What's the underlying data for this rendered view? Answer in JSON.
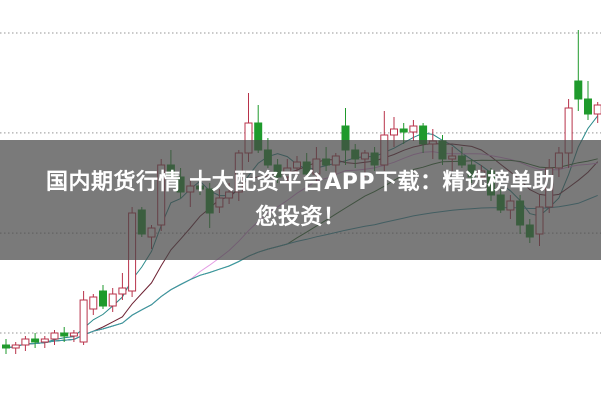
{
  "title": {
    "line1": "国内期货行情 十大配资平台APP下载：精选榜单助",
    "line2": "您投资！"
  },
  "chart_data": {
    "type": "candlestick",
    "grid": "dotted-horizontal",
    "ylim": [
      -12,
      112
    ],
    "gridlines": [
      0,
      33.3,
      66.7,
      100
    ],
    "colors": {
      "up": "#b8324a",
      "down": "#1f9a2c"
    },
    "moving_averages": [
      {
        "period": 5,
        "color": "#2a8a8a"
      },
      {
        "period": 10,
        "color": "#6e2233"
      },
      {
        "period": 20,
        "color": "#e39be3"
      },
      {
        "period": 30,
        "color": "#2f6e2f"
      },
      {
        "period": 60,
        "color": "#3a9aa8"
      }
    ],
    "ohlc": [
      [
        -4,
        -2,
        -7,
        -5
      ],
      [
        -5,
        -3,
        -7,
        -4
      ],
      [
        -4,
        -1,
        -6,
        -2
      ],
      [
        -2,
        0,
        -5,
        -3
      ],
      [
        -3,
        -1,
        -5,
        -2
      ],
      [
        -2,
        1,
        -4,
        0
      ],
      [
        0,
        2,
        -3,
        -1
      ],
      [
        -1,
        1,
        -3,
        0
      ],
      [
        -3,
        14,
        -4,
        11
      ],
      [
        8,
        13,
        6,
        12
      ],
      [
        14,
        16,
        8,
        9
      ],
      [
        9,
        15,
        7,
        13
      ],
      [
        13,
        20,
        11,
        15
      ],
      [
        14,
        42,
        12,
        40
      ],
      [
        41,
        42,
        32,
        33
      ],
      [
        32,
        36,
        28,
        35
      ],
      [
        36,
        58,
        34,
        56
      ],
      [
        56,
        61,
        52,
        53
      ],
      [
        52,
        55,
        45,
        47
      ],
      [
        47,
        51,
        42,
        49
      ],
      [
        49,
        53,
        46,
        48
      ],
      [
        48,
        50,
        35,
        40
      ],
      [
        42,
        48,
        40,
        45
      ],
      [
        45,
        50,
        43,
        47
      ],
      [
        47,
        61,
        44,
        60
      ],
      [
        60,
        80,
        57,
        70
      ],
      [
        70,
        76,
        60,
        61
      ],
      [
        61,
        65,
        55,
        56
      ],
      [
        56,
        58,
        50,
        52
      ],
      [
        52,
        58,
        50,
        55
      ],
      [
        55,
        59,
        52,
        57
      ],
      [
        57,
        60,
        52,
        53
      ],
      [
        53,
        62,
        50,
        58
      ],
      [
        58,
        62,
        54,
        56
      ],
      [
        56,
        60,
        52,
        59
      ],
      [
        69,
        75,
        56,
        61
      ],
      [
        61,
        63,
        55,
        58
      ],
      [
        58,
        61,
        52,
        60
      ],
      [
        60,
        62,
        54,
        56
      ],
      [
        56,
        74,
        54,
        66
      ],
      [
        66,
        72,
        62,
        68
      ],
      [
        68,
        70,
        63,
        67
      ],
      [
        67,
        71,
        64,
        69
      ],
      [
        69,
        70,
        60,
        63
      ],
      [
        63,
        68,
        58,
        64
      ],
      [
        64,
        66,
        56,
        58
      ],
      [
        58,
        62,
        54,
        59
      ],
      [
        59,
        62,
        55,
        56
      ],
      [
        56,
        58,
        50,
        52
      ],
      [
        52,
        56,
        49,
        54
      ],
      [
        54,
        55,
        44,
        46
      ],
      [
        46,
        48,
        40,
        41
      ],
      [
        41,
        46,
        38,
        44
      ],
      [
        44,
        46,
        33,
        36
      ],
      [
        36,
        38,
        30,
        32
      ],
      [
        33,
        46,
        29,
        42
      ],
      [
        42,
        58,
        40,
        55
      ],
      [
        55,
        62,
        52,
        60
      ],
      [
        60,
        78,
        55,
        75
      ],
      [
        84,
        101,
        74,
        78
      ],
      [
        78,
        84,
        71,
        73
      ],
      [
        73,
        77,
        70,
        76
      ]
    ]
  }
}
